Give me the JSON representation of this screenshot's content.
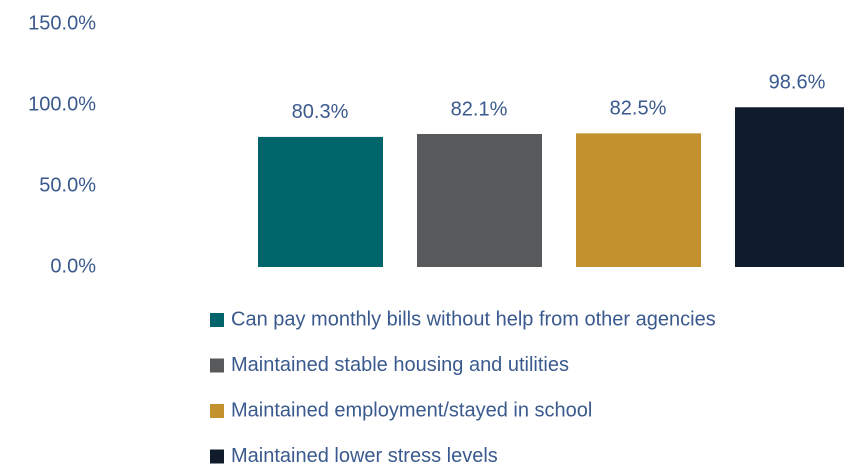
{
  "chart_data": {
    "type": "bar",
    "categories": [
      null
    ],
    "series": [
      {
        "name": "Can pay monthly bills without help from other agencies",
        "color": "#00646b",
        "values": [
          80.3
        ],
        "value_labels": [
          "80.3%"
        ]
      },
      {
        "name": "Maintained stable housing and utilities",
        "color": "#58595b",
        "values": [
          82.1
        ],
        "value_labels": [
          "82.1%"
        ]
      },
      {
        "name": "Maintained employment/stayed in school",
        "color": "#c3922e",
        "values": [
          82.5
        ],
        "value_labels": [
          "82.5%"
        ]
      },
      {
        "name": "Maintained lower stress levels",
        "color": "#101c2c",
        "values": [
          98.6
        ],
        "value_labels": [
          "98.6%"
        ]
      }
    ],
    "ylim": [
      0,
      150
    ],
    "yticks": [
      {
        "value": 0,
        "label": "0.0%"
      },
      {
        "value": 50,
        "label": "50.0%"
      },
      {
        "value": 100,
        "label": "100.0%"
      },
      {
        "value": 150,
        "label": "150.0%"
      }
    ],
    "grid": false,
    "legend": "bottom"
  }
}
